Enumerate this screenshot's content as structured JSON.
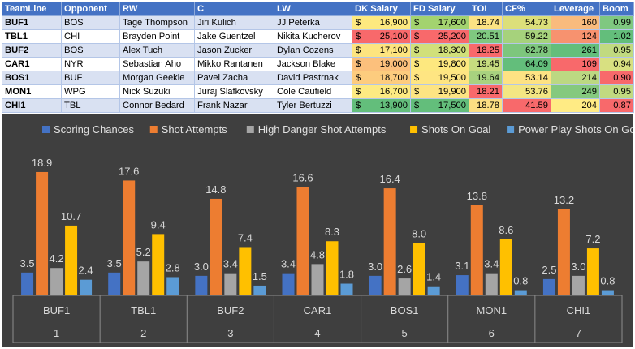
{
  "table": {
    "headers": [
      "TeamLine",
      "Opponent",
      "RW",
      "C",
      "LW",
      "DK Salary",
      "FD Salary",
      "TOI",
      "CF%",
      "Leverage",
      "Boom"
    ],
    "currency_symbol": "$",
    "rows": [
      {
        "team": "BUF1",
        "opponent": "BOS",
        "rw": "Tage Thompson",
        "c": "Jiri Kulich",
        "lw": "JJ Peterka",
        "dk": "16,900",
        "fd": "17,600",
        "toi": "18.74",
        "cf": "54.73",
        "leverage": "160",
        "boom": "0.99",
        "colors": {
          "dk": "#fde97f",
          "fd": "#a3d36f",
          "toi": "#fbe283",
          "cf": "#dcdf7a",
          "leverage": "#f9bb7d",
          "boom": "#7fc880"
        }
      },
      {
        "team": "TBL1",
        "opponent": "CHI",
        "rw": "Brayden Point",
        "c": "Jake Guentzel",
        "lw": "Nikita Kucherov",
        "dk": "25,100",
        "fd": "25,200",
        "toi": "20.51",
        "cf": "59.22",
        "leverage": "124",
        "boom": "1.02",
        "colors": {
          "dk": "#f8696b",
          "fd": "#f8696b",
          "toi": "#7fc880",
          "cf": "#a6d27c",
          "leverage": "#f7926f",
          "boom": "#63be7b"
        }
      },
      {
        "team": "BUF2",
        "opponent": "BOS",
        "rw": "Alex Tuch",
        "c": "Jason Zucker",
        "lw": "Dylan Cozens",
        "dk": "17,100",
        "fd": "18,300",
        "toi": "18.25",
        "cf": "62.78",
        "leverage": "261",
        "boom": "0.95",
        "colors": {
          "dk": "#fde47f",
          "fd": "#d1e07a",
          "toi": "#f8696b",
          "cf": "#7dc67d",
          "leverage": "#63be7b",
          "boom": "#c1da80"
        }
      },
      {
        "team": "CAR1",
        "opponent": "NYR",
        "rw": "Sebastian Aho",
        "c": "Mikko Rantanen",
        "lw": "Jackson Blake",
        "dk": "19,000",
        "fd": "19,800",
        "toi": "19.45",
        "cf": "64.09",
        "leverage": "109",
        "boom": "0.94",
        "colors": {
          "dk": "#fcc07c",
          "fd": "#fde87f",
          "toi": "#c6dd7f",
          "cf": "#63be7b",
          "leverage": "#f8696b",
          "boom": "#d8e081"
        }
      },
      {
        "team": "BOS1",
        "opponent": "BUF",
        "rw": "Morgan Geekie",
        "c": "Pavel Zacha",
        "lw": "David Pastrnak",
        "dk": "18,700",
        "fd": "19,500",
        "toi": "19.64",
        "cf": "53.14",
        "leverage": "214",
        "boom": "0.90",
        "colors": {
          "dk": "#fdcc7e",
          "fd": "#fee582",
          "toi": "#a8d27f",
          "cf": "#fde283",
          "leverage": "#bcd882",
          "boom": "#f8696b"
        }
      },
      {
        "team": "MON1",
        "opponent": "WPG",
        "rw": "Nick Suzuki",
        "c": "Juraj Slafkovsky",
        "lw": "Cole Caufield",
        "dk": "16,700",
        "fd": "19,900",
        "toi": "18.21",
        "cf": "53.76",
        "leverage": "249",
        "boom": "0.95",
        "colors": {
          "dk": "#fdea82",
          "fd": "#fde483",
          "toi": "#f8696b",
          "cf": "#f3e683",
          "leverage": "#85c97e",
          "boom": "#c1da80"
        }
      },
      {
        "team": "CHI1",
        "opponent": "TBL",
        "rw": "Connor Bedard",
        "c": "Frank Nazar",
        "lw": "Tyler Bertuzzi",
        "dk": "13,900",
        "fd": "17,500",
        "toi": "18.78",
        "cf": "41.59",
        "leverage": "204",
        "boom": "0.87",
        "colors": {
          "dk": "#63be7b",
          "fd": "#63be7b",
          "toi": "#fcde82",
          "cf": "#f8696b",
          "leverage": "#ffeb84",
          "boom": "#f8696b"
        }
      }
    ]
  },
  "chart_data": {
    "type": "bar",
    "title": "",
    "xlabel": "",
    "ylabel": "",
    "categories": [
      "BUF1",
      "TBL1",
      "BUF2",
      "CAR1",
      "BOS1",
      "MON1",
      "CHI1"
    ],
    "category_indices": [
      "1",
      "2",
      "3",
      "4",
      "5",
      "6",
      "7"
    ],
    "ylim": [
      0,
      20
    ],
    "grid": false,
    "legend_position": "top",
    "series": [
      {
        "name": "Scoring Chances",
        "color": "#4472c4",
        "values": [
          3.5,
          3.5,
          3.0,
          3.4,
          3.0,
          3.1,
          2.5
        ]
      },
      {
        "name": "Shot Attempts",
        "color": "#ed7d31",
        "values": [
          18.9,
          17.6,
          14.8,
          16.6,
          16.4,
          13.8,
          13.2
        ]
      },
      {
        "name": "High Danger Shot Attempts",
        "color": "#a5a5a5",
        "values": [
          4.2,
          5.2,
          3.4,
          4.8,
          2.6,
          3.4,
          3.0
        ]
      },
      {
        "name": "Shots On Goal",
        "color": "#ffc000",
        "values": [
          10.7,
          9.4,
          7.4,
          8.3,
          8.0,
          8.6,
          7.2
        ]
      },
      {
        "name": "Power Play Shots On Goal",
        "color": "#5b9bd5",
        "values": [
          2.4,
          2.8,
          1.5,
          1.8,
          1.4,
          0.8,
          0.8
        ]
      }
    ]
  }
}
